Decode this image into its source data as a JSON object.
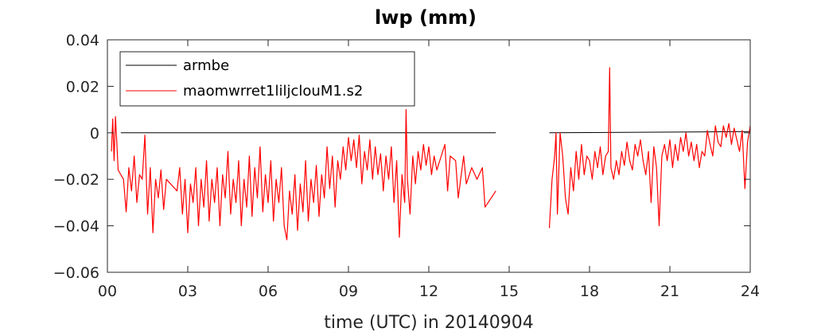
{
  "chart_data": {
    "type": "line",
    "title": "lwp  (mm)",
    "xlabel": "time (UTC) in 20140904",
    "ylabel": "",
    "xlim": [
      0,
      24
    ],
    "ylim": [
      -0.06,
      0.04
    ],
    "x_ticks": [
      0,
      3,
      6,
      9,
      12,
      15,
      18,
      21,
      24
    ],
    "x_tick_labels": [
      "00",
      "03",
      "06",
      "09",
      "12",
      "15",
      "18",
      "21",
      "24"
    ],
    "y_ticks": [
      -0.06,
      -0.04,
      -0.02,
      0,
      0.02,
      0.04
    ],
    "y_tick_labels": [
      "−0.06",
      "−0.04",
      "−0.02",
      "0",
      "0.02",
      "0.04"
    ],
    "grid": false,
    "legend_position": "top-left",
    "series": [
      {
        "name": "armbe",
        "color": "#000000",
        "segments": [
          {
            "x": [
              0.5,
              14.5
            ],
            "y": [
              0,
              0
            ]
          },
          {
            "x": [
              16.5,
              24.0
            ],
            "y": [
              0,
              0.0005
            ]
          }
        ]
      },
      {
        "name": "maomwrret1liljclouM1.s2",
        "color": "#ff0000",
        "points": [
          [
            0.15,
            -0.008
          ],
          [
            0.2,
            0.006
          ],
          [
            0.25,
            -0.012
          ],
          [
            0.3,
            0.007
          ],
          [
            0.35,
            -0.004
          ],
          [
            0.4,
            -0.016
          ],
          [
            0.6,
            -0.02
          ],
          [
            0.7,
            -0.034
          ],
          [
            0.8,
            -0.015
          ],
          [
            0.9,
            -0.025
          ],
          [
            1.0,
            -0.01
          ],
          [
            1.1,
            -0.03
          ],
          [
            1.2,
            -0.018
          ],
          [
            1.3,
            -0.02
          ],
          [
            1.4,
            -0.001
          ],
          [
            1.5,
            -0.035
          ],
          [
            1.6,
            -0.015
          ],
          [
            1.7,
            -0.043
          ],
          [
            1.8,
            -0.02
          ],
          [
            1.9,
            -0.028
          ],
          [
            2.0,
            -0.016
          ],
          [
            2.1,
            -0.033
          ],
          [
            2.2,
            -0.02
          ],
          [
            2.6,
            -0.025
          ],
          [
            2.7,
            -0.015
          ],
          [
            2.8,
            -0.035
          ],
          [
            2.9,
            -0.02
          ],
          [
            3.0,
            -0.043
          ],
          [
            3.1,
            -0.022
          ],
          [
            3.2,
            -0.03
          ],
          [
            3.3,
            -0.015
          ],
          [
            3.4,
            -0.04
          ],
          [
            3.5,
            -0.02
          ],
          [
            3.6,
            -0.032
          ],
          [
            3.7,
            -0.012
          ],
          [
            3.8,
            -0.038
          ],
          [
            3.9,
            -0.02
          ],
          [
            4.0,
            -0.03
          ],
          [
            4.1,
            -0.015
          ],
          [
            4.2,
            -0.04
          ],
          [
            4.3,
            -0.018
          ],
          [
            4.4,
            -0.028
          ],
          [
            4.5,
            -0.008
          ],
          [
            4.6,
            -0.035
          ],
          [
            4.7,
            -0.02
          ],
          [
            4.8,
            -0.03
          ],
          [
            4.9,
            -0.012
          ],
          [
            5.0,
            -0.04
          ],
          [
            5.1,
            -0.02
          ],
          [
            5.2,
            -0.032
          ],
          [
            5.3,
            -0.01
          ],
          [
            5.4,
            -0.036
          ],
          [
            5.5,
            -0.015
          ],
          [
            5.6,
            -0.028
          ],
          [
            5.7,
            -0.006
          ],
          [
            5.8,
            -0.034
          ],
          [
            5.9,
            -0.018
          ],
          [
            6.0,
            -0.03
          ],
          [
            6.1,
            -0.012
          ],
          [
            6.2,
            -0.038
          ],
          [
            6.3,
            -0.02
          ],
          [
            6.4,
            -0.03
          ],
          [
            6.5,
            -0.015
          ],
          [
            6.6,
            -0.04
          ],
          [
            6.7,
            -0.046
          ],
          [
            6.8,
            -0.025
          ],
          [
            6.9,
            -0.035
          ],
          [
            7.0,
            -0.018
          ],
          [
            7.1,
            -0.042
          ],
          [
            7.2,
            -0.022
          ],
          [
            7.3,
            -0.034
          ],
          [
            7.4,
            -0.012
          ],
          [
            7.5,
            -0.038
          ],
          [
            7.6,
            -0.02
          ],
          [
            7.7,
            -0.03
          ],
          [
            7.8,
            -0.014
          ],
          [
            7.9,
            -0.036
          ],
          [
            8.0,
            -0.018
          ],
          [
            8.1,
            -0.028
          ],
          [
            8.2,
            -0.006
          ],
          [
            8.3,
            -0.024
          ],
          [
            8.4,
            -0.01
          ],
          [
            8.5,
            -0.032
          ],
          [
            8.6,
            -0.012
          ],
          [
            8.7,
            -0.02
          ],
          [
            8.8,
            -0.006
          ],
          [
            8.9,
            -0.016
          ],
          [
            9.0,
            -0.002
          ],
          [
            9.1,
            -0.012
          ],
          [
            9.2,
            -0.003
          ],
          [
            9.3,
            -0.015
          ],
          [
            9.4,
            -0.001
          ],
          [
            9.5,
            -0.022
          ],
          [
            9.6,
            -0.008
          ],
          [
            9.7,
            -0.016
          ],
          [
            9.8,
            -0.003
          ],
          [
            9.9,
            -0.02
          ],
          [
            10.0,
            -0.006
          ],
          [
            10.1,
            -0.018
          ],
          [
            10.2,
            -0.009
          ],
          [
            10.3,
            -0.025
          ],
          [
            10.4,
            -0.01
          ],
          [
            10.5,
            -0.02
          ],
          [
            10.6,
            -0.006
          ],
          [
            10.7,
            -0.03
          ],
          [
            10.8,
            -0.012
          ],
          [
            10.9,
            -0.045
          ],
          [
            11.0,
            -0.018
          ],
          [
            11.1,
            -0.03
          ],
          [
            11.15,
            0.01
          ],
          [
            11.2,
            -0.02
          ],
          [
            11.3,
            -0.035
          ],
          [
            11.4,
            -0.01
          ],
          [
            11.5,
            -0.022
          ],
          [
            11.6,
            -0.008
          ],
          [
            11.7,
            -0.016
          ],
          [
            11.8,
            -0.005
          ],
          [
            11.9,
            -0.014
          ],
          [
            12.0,
            -0.006
          ],
          [
            12.1,
            -0.018
          ],
          [
            12.2,
            -0.01
          ],
          [
            12.3,
            -0.016
          ],
          [
            12.6,
            -0.005
          ],
          [
            12.7,
            -0.025
          ],
          [
            12.8,
            -0.01
          ],
          [
            13.0,
            -0.012
          ],
          [
            13.1,
            -0.028
          ],
          [
            13.3,
            -0.01
          ],
          [
            13.4,
            -0.022
          ],
          [
            13.6,
            -0.015
          ],
          [
            13.8,
            -0.02
          ],
          [
            14.0,
            -0.015
          ],
          [
            14.1,
            -0.032
          ],
          [
            14.5,
            -0.025
          ],
          [
            16.5,
            -0.041
          ],
          [
            16.6,
            -0.02
          ],
          [
            16.7,
            -0.01
          ],
          [
            16.75,
            0.0
          ],
          [
            16.8,
            -0.035
          ],
          [
            16.9,
            0.0
          ],
          [
            17.0,
            -0.01
          ],
          [
            17.1,
            -0.028
          ],
          [
            17.2,
            -0.035
          ],
          [
            17.3,
            -0.015
          ],
          [
            17.4,
            -0.025
          ],
          [
            17.5,
            -0.008
          ],
          [
            17.6,
            -0.02
          ],
          [
            17.7,
            -0.005
          ],
          [
            17.8,
            -0.018
          ],
          [
            17.9,
            -0.01
          ],
          [
            18.0,
            -0.012
          ],
          [
            18.1,
            -0.02
          ],
          [
            18.2,
            -0.008
          ],
          [
            18.3,
            -0.015
          ],
          [
            18.4,
            -0.006
          ],
          [
            18.5,
            -0.018
          ],
          [
            18.6,
            -0.01
          ],
          [
            18.7,
            -0.008
          ],
          [
            18.75,
            0.028
          ],
          [
            18.8,
            -0.015
          ],
          [
            18.9,
            -0.02
          ],
          [
            19.0,
            -0.012
          ],
          [
            19.1,
            -0.018
          ],
          [
            19.2,
            -0.008
          ],
          [
            19.3,
            -0.014
          ],
          [
            19.4,
            -0.004
          ],
          [
            19.5,
            -0.012
          ],
          [
            19.6,
            -0.016
          ],
          [
            19.7,
            -0.005
          ],
          [
            19.8,
            -0.01
          ],
          [
            19.9,
            -0.003
          ],
          [
            20.0,
            -0.012
          ],
          [
            20.1,
            -0.018
          ],
          [
            20.2,
            -0.008
          ],
          [
            20.3,
            -0.03
          ],
          [
            20.4,
            -0.006
          ],
          [
            20.5,
            -0.015
          ],
          [
            20.6,
            -0.04
          ],
          [
            20.7,
            -0.01
          ],
          [
            20.8,
            -0.005
          ],
          [
            20.9,
            -0.012
          ],
          [
            21.0,
            -0.003
          ],
          [
            21.1,
            -0.015
          ],
          [
            21.2,
            -0.005
          ],
          [
            21.3,
            -0.012
          ],
          [
            21.4,
            -0.002
          ],
          [
            21.5,
            -0.008
          ],
          [
            21.6,
            0.0
          ],
          [
            21.7,
            -0.01
          ],
          [
            21.8,
            -0.004
          ],
          [
            21.9,
            -0.012
          ],
          [
            22.0,
            -0.005
          ],
          [
            22.1,
            -0.015
          ],
          [
            22.2,
            -0.008
          ],
          [
            22.3,
            -0.01
          ],
          [
            22.4,
            0.001
          ],
          [
            22.5,
            -0.005
          ],
          [
            22.6,
            -0.01
          ],
          [
            22.7,
            0.003
          ],
          [
            22.8,
            -0.004
          ],
          [
            22.9,
            -0.006
          ],
          [
            23.0,
            0.003
          ],
          [
            23.1,
            -0.002
          ],
          [
            23.2,
            0.004
          ],
          [
            23.3,
            -0.005
          ],
          [
            23.4,
            0.002
          ],
          [
            23.5,
            -0.003
          ],
          [
            23.6,
            -0.008
          ],
          [
            23.7,
            0.001
          ],
          [
            23.8,
            -0.024
          ],
          [
            23.9,
            -0.004
          ],
          [
            24.0,
            0.003
          ]
        ]
      }
    ]
  }
}
